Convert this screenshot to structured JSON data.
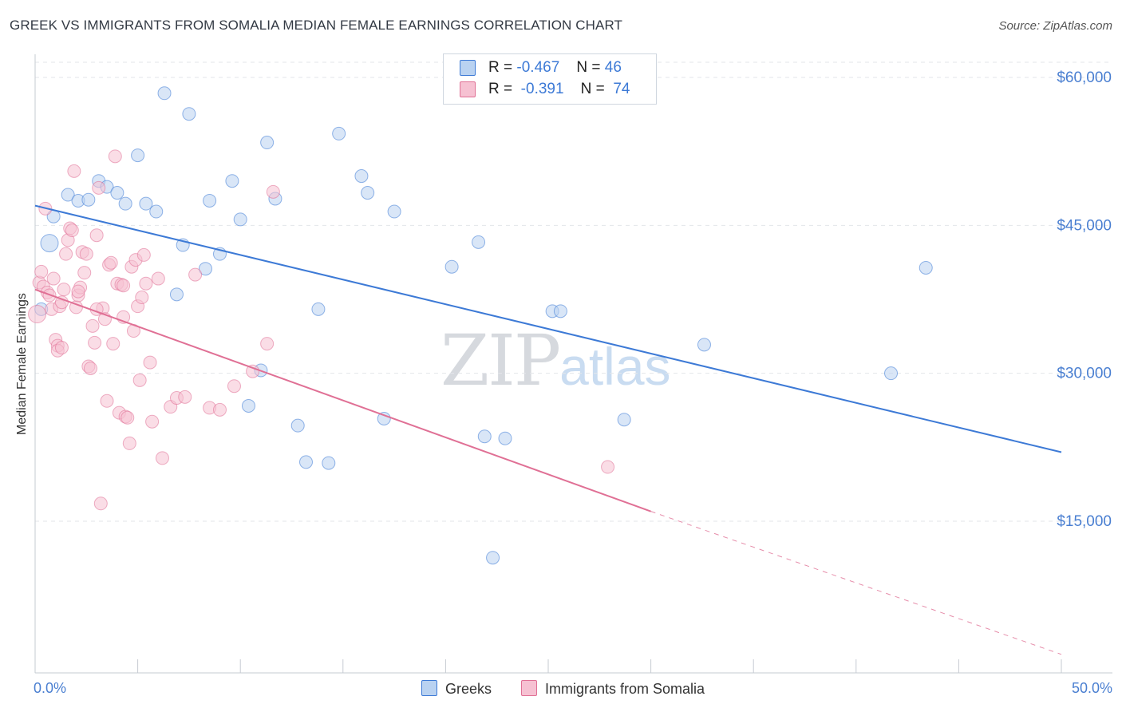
{
  "chart_data": {
    "type": "scatter",
    "title": "GREEK VS IMMIGRANTS FROM SOMALIA MEDIAN FEMALE EARNINGS CORRELATION CHART",
    "source": "Source: ZipAtlas.com",
    "ylabel": "Median Female Earnings",
    "xlim": [
      0,
      50
    ],
    "ylim": [
      1000,
      64000
    ],
    "x_tick_labels": [
      "0.0%",
      "50.0%"
    ],
    "y_ticks": [
      {
        "value": 15000,
        "label": "$15,000"
      },
      {
        "value": 30000,
        "label": "$30,000"
      },
      {
        "value": 45000,
        "label": "$45,000"
      },
      {
        "value": 60000,
        "label": "$60,000"
      }
    ],
    "watermark": {
      "zip": "ZIP",
      "atlas": "atlas"
    },
    "legend": {
      "r_label": "R =",
      "n_label": "N =",
      "entries": [
        {
          "r": "-0.467",
          "n": "46"
        },
        {
          "r": "-0.391",
          "n": "74"
        }
      ]
    },
    "series": [
      {
        "name": "Greeks",
        "color": "#3d7ad6",
        "fill": "#b9d2f1",
        "trend": {
          "x0": 0,
          "y0": 47000,
          "x1": 50,
          "y1": 22000
        },
        "points": [
          [
            0.3,
            36500,
            1
          ],
          [
            0.7,
            43200,
            2
          ],
          [
            0.9,
            45900,
            1
          ],
          [
            1.6,
            48100,
            1
          ],
          [
            2.1,
            47500,
            1
          ],
          [
            2.6,
            47600,
            1
          ],
          [
            3.1,
            49500,
            1
          ],
          [
            3.5,
            48900,
            1
          ],
          [
            4.0,
            48300,
            1
          ],
          [
            4.4,
            47200,
            1
          ],
          [
            5.0,
            52100,
            1
          ],
          [
            5.4,
            47200,
            1
          ],
          [
            5.9,
            46400,
            1
          ],
          [
            6.3,
            58400,
            1
          ],
          [
            7.2,
            43000,
            1
          ],
          [
            6.9,
            38000,
            1
          ],
          [
            7.5,
            56300,
            1
          ],
          [
            8.3,
            40600,
            1
          ],
          [
            8.5,
            47500,
            1
          ],
          [
            9.0,
            42100,
            1
          ],
          [
            9.6,
            49500,
            1
          ],
          [
            10.0,
            45600,
            1
          ],
          [
            10.4,
            26700,
            1
          ],
          [
            11.0,
            30300,
            1
          ],
          [
            11.3,
            53400,
            1
          ],
          [
            11.7,
            47700,
            1
          ],
          [
            12.8,
            24700,
            1
          ],
          [
            13.2,
            21000,
            1
          ],
          [
            13.8,
            36500,
            1
          ],
          [
            14.3,
            20900,
            1
          ],
          [
            14.8,
            54300,
            1
          ],
          [
            15.9,
            50000,
            1
          ],
          [
            16.2,
            48300,
            1
          ],
          [
            17.0,
            25400,
            1
          ],
          [
            17.5,
            46400,
            1
          ],
          [
            20.3,
            40800,
            1
          ],
          [
            21.6,
            43300,
            1
          ],
          [
            21.9,
            23600,
            1
          ],
          [
            22.3,
            11300,
            1
          ],
          [
            22.9,
            23400,
            1
          ],
          [
            25.2,
            36300,
            1
          ],
          [
            25.6,
            36300,
            1
          ],
          [
            28.7,
            25300,
            1
          ],
          [
            32.6,
            32900,
            1
          ],
          [
            41.7,
            30000,
            1
          ],
          [
            43.4,
            40700,
            1
          ]
        ]
      },
      {
        "name": "Immigrants from Somalia",
        "color": "#e07095",
        "fill": "#f6c1d2",
        "trend": {
          "x0": 0,
          "y0": 38500,
          "x1": 30,
          "y1": 16000,
          "dash_x1": 50,
          "dash_y1": 1500
        },
        "points": [
          [
            0.1,
            36000,
            2
          ],
          [
            0.2,
            39200,
            1
          ],
          [
            0.3,
            40300,
            1
          ],
          [
            0.4,
            38800,
            1
          ],
          [
            0.5,
            46700,
            1
          ],
          [
            0.6,
            38200,
            1
          ],
          [
            0.7,
            37900,
            1
          ],
          [
            0.8,
            36500,
            1
          ],
          [
            0.9,
            39600,
            1
          ],
          [
            1.0,
            33400,
            1
          ],
          [
            1.1,
            32800,
            1
          ],
          [
            1.1,
            32300,
            1
          ],
          [
            1.2,
            36800,
            1
          ],
          [
            1.3,
            37200,
            1
          ],
          [
            1.4,
            38500,
            1
          ],
          [
            1.5,
            42100,
            1
          ],
          [
            1.6,
            43500,
            1
          ],
          [
            1.7,
            44700,
            1
          ],
          [
            1.8,
            44500,
            1
          ],
          [
            1.9,
            50500,
            1
          ],
          [
            2.0,
            36700,
            1
          ],
          [
            2.1,
            37900,
            1
          ],
          [
            2.2,
            38700,
            1
          ],
          [
            2.3,
            42300,
            1
          ],
          [
            2.4,
            40200,
            1
          ],
          [
            2.5,
            42100,
            1
          ],
          [
            2.6,
            30700,
            1
          ],
          [
            2.7,
            30500,
            1
          ],
          [
            2.8,
            34800,
            1
          ],
          [
            2.9,
            33100,
            1
          ],
          [
            3.0,
            44000,
            1
          ],
          [
            3.1,
            48800,
            1
          ],
          [
            3.2,
            16800,
            1
          ],
          [
            3.3,
            36600,
            1
          ],
          [
            3.4,
            35500,
            1
          ],
          [
            3.5,
            27200,
            1
          ],
          [
            3.6,
            41000,
            1
          ],
          [
            3.7,
            41200,
            1
          ],
          [
            3.8,
            33000,
            1
          ],
          [
            3.9,
            52000,
            1
          ],
          [
            4.0,
            39100,
            1
          ],
          [
            4.1,
            26000,
            1
          ],
          [
            4.2,
            39000,
            1
          ],
          [
            4.3,
            35700,
            1
          ],
          [
            4.4,
            25600,
            1
          ],
          [
            4.5,
            25500,
            1
          ],
          [
            4.6,
            22900,
            1
          ],
          [
            4.7,
            40800,
            1
          ],
          [
            4.8,
            34300,
            1
          ],
          [
            4.9,
            41500,
            1
          ],
          [
            5.0,
            36800,
            1
          ],
          [
            5.1,
            29300,
            1
          ],
          [
            5.2,
            37700,
            1
          ],
          [
            5.3,
            42000,
            1
          ],
          [
            5.4,
            39100,
            1
          ],
          [
            5.6,
            31100,
            1
          ],
          [
            5.7,
            25100,
            1
          ],
          [
            6.0,
            39600,
            1
          ],
          [
            6.2,
            21400,
            1
          ],
          [
            6.6,
            26600,
            1
          ],
          [
            6.9,
            27500,
            1
          ],
          [
            7.3,
            27600,
            1
          ],
          [
            7.8,
            40000,
            1
          ],
          [
            8.5,
            26500,
            1
          ],
          [
            9.0,
            26300,
            1
          ],
          [
            9.7,
            28700,
            1
          ],
          [
            10.6,
            30200,
            1
          ],
          [
            11.3,
            33000,
            1
          ],
          [
            11.6,
            48400,
            1
          ],
          [
            27.9,
            20500,
            1
          ],
          [
            1.3,
            32600,
            1
          ],
          [
            2.1,
            38300,
            1
          ],
          [
            4.3,
            38900,
            1
          ],
          [
            3.0,
            36500,
            1
          ]
        ]
      }
    ]
  }
}
